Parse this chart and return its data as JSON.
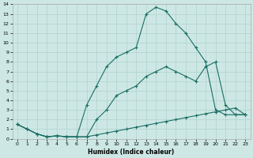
{
  "xlabel": "Humidex (Indice chaleur)",
  "bg_color": "#cde8e4",
  "grid_color": "#b0d0cc",
  "line_color": "#1a6e65",
  "xlim": [
    -0.5,
    23.5
  ],
  "ylim": [
    0,
    14
  ],
  "xticks": [
    0,
    1,
    2,
    3,
    4,
    5,
    6,
    7,
    8,
    9,
    10,
    11,
    12,
    13,
    14,
    15,
    16,
    17,
    18,
    19,
    20,
    21,
    22,
    23
  ],
  "yticks": [
    0,
    1,
    2,
    3,
    4,
    5,
    6,
    7,
    8,
    9,
    10,
    11,
    12,
    13,
    14
  ],
  "line1_x": [
    0,
    1,
    2,
    3,
    4,
    5,
    6,
    7,
    8,
    9,
    10,
    11,
    12,
    13,
    14,
    15,
    16,
    17,
    18,
    19,
    20,
    21,
    22,
    23
  ],
  "line1_y": [
    1.5,
    1.0,
    0.5,
    0.2,
    0.3,
    0.2,
    0.2,
    0.2,
    0.4,
    0.6,
    0.8,
    1.0,
    1.2,
    1.4,
    1.6,
    1.8,
    2.0,
    2.2,
    2.4,
    2.6,
    2.8,
    3.0,
    3.2,
    2.5
  ],
  "line2_x": [
    0,
    1,
    2,
    3,
    4,
    5,
    6,
    7,
    8,
    9,
    10,
    11,
    12,
    13,
    14,
    15,
    16,
    17,
    18,
    19,
    20,
    21,
    22,
    23
  ],
  "line2_y": [
    1.5,
    1.0,
    0.5,
    0.2,
    0.3,
    0.2,
    0.2,
    3.5,
    5.5,
    7.5,
    8.5,
    9.0,
    9.5,
    13.0,
    13.7,
    13.3,
    12.0,
    11.0,
    9.5,
    8.0,
    3.0,
    2.5,
    2.5,
    2.5
  ],
  "line3_x": [
    0,
    1,
    2,
    3,
    4,
    5,
    6,
    7,
    8,
    9,
    10,
    11,
    12,
    13,
    14,
    15,
    16,
    17,
    18,
    19,
    20,
    21,
    22,
    23
  ],
  "line3_y": [
    1.5,
    1.0,
    0.5,
    0.2,
    0.3,
    0.2,
    0.2,
    0.2,
    2.0,
    3.0,
    4.5,
    5.0,
    5.5,
    6.5,
    7.0,
    7.5,
    7.0,
    6.5,
    6.0,
    7.5,
    8.0,
    3.5,
    2.5,
    2.5
  ]
}
